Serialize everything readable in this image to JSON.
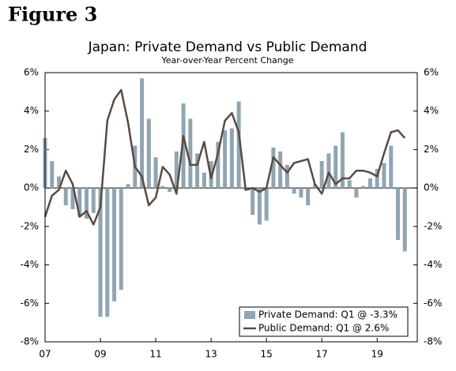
{
  "chart_data": {
    "type": "bar_line",
    "figure_label": "Figure 3",
    "title": "Japan: Private Demand vs Public Demand",
    "subtitle": "Year-over-Year Percent Change",
    "x": [
      2007,
      2007.25,
      2007.5,
      2007.75,
      2008,
      2008.25,
      2008.5,
      2008.75,
      2009,
      2009.25,
      2009.5,
      2009.75,
      2010,
      2010.25,
      2010.5,
      2010.75,
      2011,
      2011.25,
      2011.5,
      2011.75,
      2012,
      2012.25,
      2012.5,
      2012.75,
      2013,
      2013.25,
      2013.5,
      2013.75,
      2014,
      2014.25,
      2014.5,
      2014.75,
      2015,
      2015.25,
      2015.5,
      2015.75,
      2016,
      2016.25,
      2016.5,
      2016.75,
      2017,
      2017.25,
      2017.5,
      2017.75,
      2018,
      2018.25,
      2018.5,
      2018.75,
      2019,
      2019.25,
      2019.5,
      2019.75,
      2020
    ],
    "series": [
      {
        "name": "Private Demand: Q1 @ -3.3%",
        "kind": "bar",
        "color": "#8fa5b2",
        "values": [
          2.6,
          1.4,
          0.6,
          -0.9,
          -1.1,
          -1.5,
          -1.6,
          -1.3,
          -6.7,
          -6.7,
          -5.9,
          -5.3,
          0.2,
          2.2,
          5.7,
          3.6,
          1.6,
          0.1,
          -0.2,
          1.9,
          4.4,
          3.6,
          1.8,
          0.8,
          1.4,
          2.4,
          3.0,
          3.1,
          4.5,
          -0.1,
          -1.4,
          -1.9,
          -1.7,
          2.1,
          1.9,
          1.2,
          -0.3,
          -0.5,
          -0.9,
          0.2,
          1.4,
          1.8,
          2.2,
          2.9,
          0.4,
          -0.5,
          0.1,
          0.5,
          1.0,
          1.3,
          2.2,
          -2.7,
          -3.3
        ]
      },
      {
        "name": "Public Demand: Q1 @ 2.6%",
        "kind": "line",
        "color": "#5a4a42",
        "values": [
          -1.5,
          -0.4,
          -0.1,
          0.9,
          0.2,
          -1.5,
          -1.2,
          -1.9,
          -1.0,
          3.5,
          4.6,
          5.1,
          3.4,
          1.1,
          0.6,
          -0.9,
          -0.5,
          1.1,
          0.7,
          -0.3,
          2.7,
          1.2,
          1.2,
          2.4,
          0.5,
          1.8,
          3.5,
          3.9,
          2.9,
          -0.1,
          0.0,
          -0.2,
          0.0,
          1.6,
          1.2,
          0.8,
          1.3,
          1.4,
          1.5,
          0.2,
          -0.3,
          0.8,
          0.2,
          0.5,
          0.5,
          0.9,
          0.9,
          0.8,
          0.6,
          1.8,
          2.9,
          3.0,
          2.6
        ]
      }
    ],
    "xlim": [
      2007,
      2020.45
    ],
    "xticks": [
      {
        "value": 2007,
        "label": "07"
      },
      {
        "value": 2009,
        "label": "09"
      },
      {
        "value": 2011,
        "label": "11"
      },
      {
        "value": 2013,
        "label": "13"
      },
      {
        "value": 2015,
        "label": "15"
      },
      {
        "value": 2017,
        "label": "17"
      },
      {
        "value": 2019,
        "label": "19"
      }
    ],
    "ylim": [
      -8,
      6
    ],
    "yticks": [
      {
        "value": -8,
        "label": "-8%"
      },
      {
        "value": -6,
        "label": "-6%"
      },
      {
        "value": -4,
        "label": "-4%"
      },
      {
        "value": -2,
        "label": "-2%"
      },
      {
        "value": 0,
        "label": "0%"
      },
      {
        "value": 2,
        "label": "2%"
      },
      {
        "value": 4,
        "label": "4%"
      },
      {
        "value": 6,
        "label": "6%"
      }
    ],
    "y2lim": [
      -8,
      6
    ],
    "y2ticks": [
      {
        "value": -8,
        "label": "-8%"
      },
      {
        "value": -6,
        "label": "-6%"
      },
      {
        "value": -4,
        "label": "-4%"
      },
      {
        "value": -2,
        "label": "-2%"
      },
      {
        "value": 0,
        "label": "0%"
      },
      {
        "value": 2,
        "label": "2%"
      },
      {
        "value": 4,
        "label": "4%"
      },
      {
        "value": 6,
        "label": "6%"
      }
    ],
    "legend": "lower right"
  }
}
